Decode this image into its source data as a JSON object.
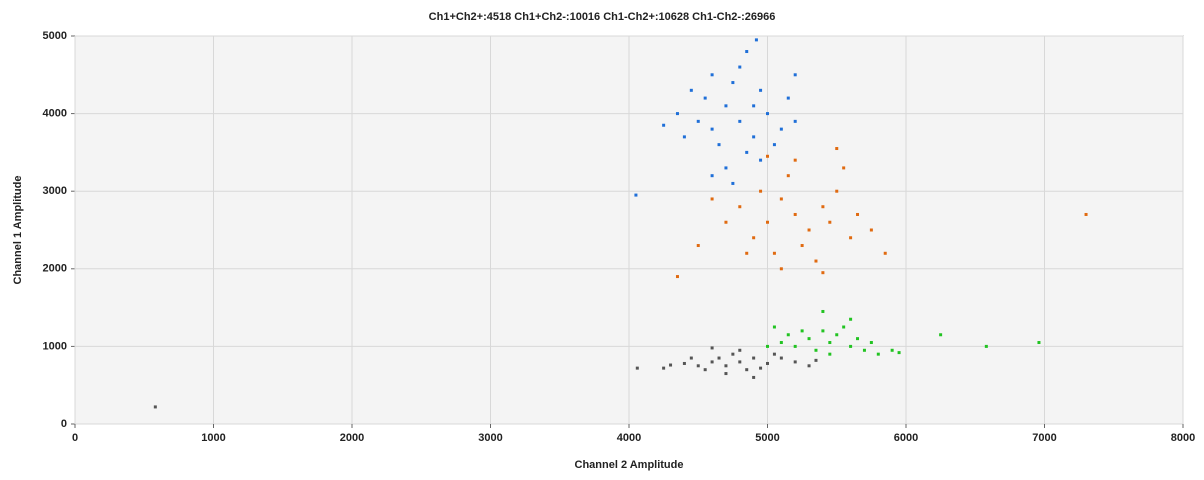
{
  "chart_data": {
    "type": "scatter",
    "title": "Ch1+Ch2+:4518  Ch1+Ch2-:10016  Ch1-Ch2+:10628  Ch1-Ch2-:26966",
    "xlabel": "Channel 2 Amplitude",
    "ylabel": "Channel 1 Amplitude",
    "xlim": [
      0,
      8000
    ],
    "ylim": [
      0,
      5000
    ],
    "xticks": [
      0,
      1000,
      2000,
      3000,
      4000,
      5000,
      6000,
      7000,
      8000
    ],
    "yticks": [
      0,
      1000,
      2000,
      3000,
      4000,
      5000
    ],
    "grid": true,
    "series": [
      {
        "color": "#1f6fd8",
        "x": [
          4800,
          4700,
          4900,
          4600,
          5000,
          4750,
          4850,
          4550,
          5100,
          4650,
          4950,
          4800,
          4500,
          5050,
          4700,
          4900,
          4600,
          5150,
          4400,
          4850,
          4750,
          4450,
          5200,
          4600,
          4950,
          4350,
          4920,
          5200,
          4050,
          4250
        ],
        "values": [
          3900,
          4100,
          3700,
          3800,
          4000,
          4400,
          3500,
          4200,
          3800,
          3600,
          4300,
          4600,
          3900,
          3600,
          3300,
          4100,
          4500,
          4200,
          3700,
          4800,
          3100,
          4300,
          3900,
          3200,
          3400,
          4000,
          4950,
          4500,
          2950,
          3850
        ]
      },
      {
        "color": "#e06a10",
        "x": [
          5200,
          5100,
          5300,
          5000,
          5400,
          5150,
          4900,
          5250,
          5500,
          4800,
          5350,
          5050,
          5450,
          4950,
          5600,
          4700,
          5200,
          5550,
          4850,
          5650,
          4600,
          5400,
          5100,
          5750,
          4500,
          5850,
          4350,
          5500,
          5000,
          7300
        ],
        "values": [
          2700,
          2900,
          2500,
          2600,
          2800,
          3200,
          2400,
          2300,
          3000,
          2800,
          2100,
          2200,
          2600,
          3000,
          2400,
          2600,
          3400,
          3300,
          2200,
          2700,
          2900,
          1950,
          2000,
          2500,
          2300,
          2200,
          1900,
          3550,
          3450,
          2700
        ]
      },
      {
        "color": "#22c322",
        "x": [
          5450,
          5300,
          5600,
          5400,
          5200,
          5500,
          5700,
          5350,
          5550,
          5100,
          5650,
          5800,
          5250,
          5450,
          5900,
          5000,
          5750,
          5600,
          5150,
          5400,
          5950,
          5050,
          6250,
          6580,
          6960
        ],
        "values": [
          1050,
          1100,
          1000,
          1200,
          1000,
          1150,
          950,
          950,
          1250,
          1050,
          1100,
          900,
          1200,
          900,
          950,
          1000,
          1050,
          1350,
          1150,
          1450,
          920,
          1250,
          1150,
          1000,
          1050
        ]
      },
      {
        "color": "#555555",
        "x": [
          4800,
          4700,
          4900,
          4600,
          5000,
          4750,
          4850,
          4500,
          5100,
          4650,
          4950,
          4400,
          5200,
          4550,
          4800,
          5300,
          4300,
          4700,
          5050,
          4450,
          4900,
          5350,
          4250,
          4600,
          4060,
          580
        ],
        "values": [
          800,
          750,
          850,
          800,
          780,
          900,
          700,
          750,
          850,
          850,
          720,
          780,
          800,
          700,
          950,
          750,
          760,
          650,
          900,
          850,
          600,
          820,
          720,
          980,
          720,
          220
        ]
      }
    ]
  }
}
